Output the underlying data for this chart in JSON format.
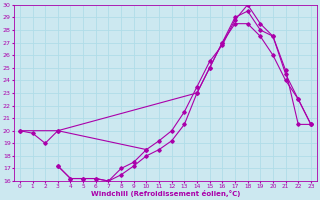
{
  "xlabel": "Windchill (Refroidissement éolien,°C)",
  "xlim": [
    -0.5,
    23.5
  ],
  "ylim": [
    16,
    30
  ],
  "xticks": [
    0,
    1,
    2,
    3,
    4,
    5,
    6,
    7,
    8,
    9,
    10,
    11,
    12,
    13,
    14,
    15,
    16,
    17,
    18,
    19,
    20,
    21,
    22,
    23
  ],
  "yticks": [
    16,
    17,
    18,
    19,
    20,
    21,
    22,
    23,
    24,
    25,
    26,
    27,
    28,
    29,
    30
  ],
  "bg_color": "#cce8f0",
  "line_color": "#aa00aa",
  "grid_color": "#b0dde8",
  "lines": [
    {
      "x": [
        0,
        1,
        2,
        3,
        10,
        11,
        12,
        13,
        14,
        15,
        16,
        17,
        18,
        19,
        20,
        21,
        22,
        23
      ],
      "y": [
        20.0,
        19.8,
        19.0,
        20.0,
        18.5,
        19.2,
        20.0,
        21.5,
        23.5,
        25.5,
        26.8,
        28.8,
        30.0,
        28.5,
        27.5,
        24.8,
        20.5,
        20.5
      ]
    },
    {
      "x": [
        0,
        3,
        14,
        15,
        16,
        17,
        18,
        19,
        20,
        21,
        22,
        23
      ],
      "y": [
        20.0,
        20.0,
        23.0,
        25.0,
        27.0,
        29.0,
        29.5,
        28.0,
        27.5,
        24.5,
        22.5,
        20.5
      ]
    },
    {
      "x": [
        3,
        4,
        5,
        6,
        7,
        8,
        9,
        10,
        11,
        12,
        13,
        14,
        15,
        16,
        17,
        18,
        19,
        20,
        21,
        22,
        23
      ],
      "y": [
        17.2,
        16.2,
        16.2,
        16.2,
        16.0,
        16.5,
        17.2,
        18.0,
        18.5,
        19.2,
        20.5,
        23.0,
        25.0,
        27.0,
        28.5,
        28.5,
        27.5,
        26.0,
        24.0,
        22.5,
        20.5
      ]
    },
    {
      "x": [
        3,
        4,
        5,
        6,
        7,
        8,
        9,
        10
      ],
      "y": [
        17.2,
        16.2,
        16.2,
        16.2,
        16.0,
        17.0,
        17.5,
        18.5
      ]
    }
  ]
}
